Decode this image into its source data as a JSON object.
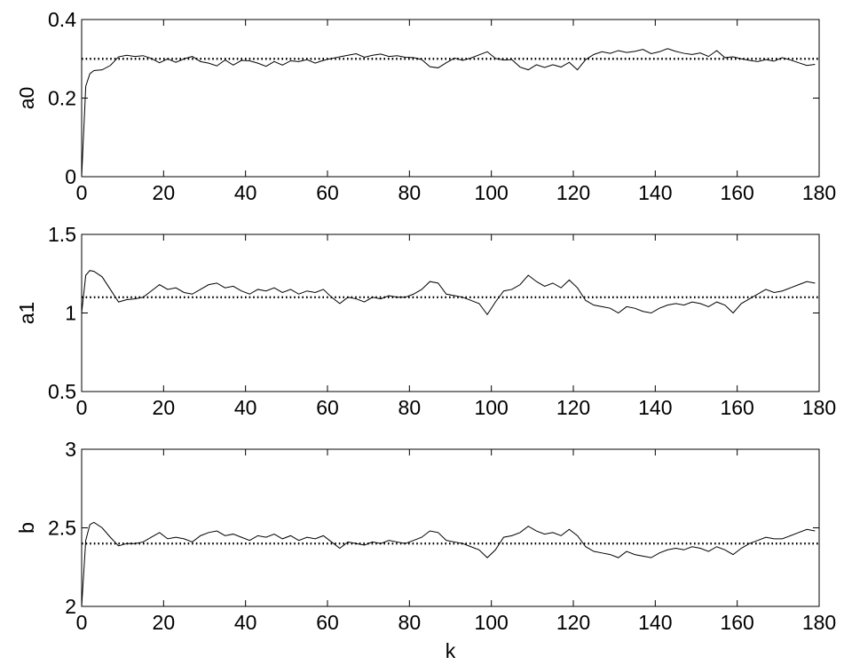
{
  "chart_data": [
    {
      "type": "line",
      "title": "",
      "xlabel": "",
      "ylabel": "a0",
      "xlim": [
        0,
        180
      ],
      "ylim": [
        0,
        0.4
      ],
      "xticks": [
        0,
        20,
        40,
        60,
        80,
        100,
        120,
        140,
        160,
        180
      ],
      "yticks": [
        0,
        0.2,
        0.4
      ],
      "xtick_labels": [
        "0",
        "20",
        "40",
        "60",
        "80",
        "100",
        "120",
        "140",
        "160",
        "180"
      ],
      "ytick_labels": [
        "0",
        "0.2",
        "0.4"
      ],
      "grid": false,
      "series": [
        {
          "style": "solid",
          "x": [
            0,
            1,
            2,
            3,
            5,
            7,
            9,
            11,
            13,
            15,
            17,
            19,
            21,
            23,
            25,
            27,
            29,
            31,
            33,
            35,
            37,
            39,
            41,
            43,
            45,
            47,
            49,
            51,
            53,
            55,
            57,
            59,
            61,
            63,
            65,
            67,
            69,
            71,
            73,
            75,
            77,
            79,
            81,
            83,
            85,
            87,
            89,
            91,
            93,
            95,
            97,
            99,
            101,
            103,
            105,
            107,
            109,
            111,
            113,
            115,
            117,
            119,
            121,
            123,
            125,
            127,
            129,
            131,
            133,
            135,
            137,
            139,
            141,
            143,
            145,
            147,
            149,
            151,
            153,
            155,
            157,
            159,
            161,
            163,
            165,
            167,
            169,
            171,
            173,
            175,
            177,
            179
          ],
          "y": [
            0.0,
            0.23,
            0.262,
            0.27,
            0.272,
            0.283,
            0.305,
            0.309,
            0.306,
            0.308,
            0.301,
            0.29,
            0.3,
            0.291,
            0.3,
            0.306,
            0.293,
            0.289,
            0.282,
            0.297,
            0.284,
            0.296,
            0.295,
            0.289,
            0.281,
            0.293,
            0.284,
            0.295,
            0.293,
            0.298,
            0.289,
            0.296,
            0.301,
            0.305,
            0.309,
            0.313,
            0.304,
            0.309,
            0.312,
            0.306,
            0.308,
            0.304,
            0.303,
            0.298,
            0.28,
            0.277,
            0.29,
            0.302,
            0.296,
            0.302,
            0.31,
            0.318,
            0.301,
            0.297,
            0.298,
            0.279,
            0.272,
            0.285,
            0.278,
            0.285,
            0.279,
            0.291,
            0.272,
            0.298,
            0.311,
            0.318,
            0.314,
            0.321,
            0.316,
            0.319,
            0.324,
            0.313,
            0.318,
            0.326,
            0.319,
            0.314,
            0.311,
            0.315,
            0.306,
            0.321,
            0.303,
            0.305,
            0.3,
            0.296,
            0.293,
            0.298,
            0.294,
            0.303,
            0.297,
            0.29,
            0.283,
            0.286
          ]
        },
        {
          "style": "dotted",
          "x": [
            0,
            180
          ],
          "y": [
            0.3,
            0.3
          ]
        }
      ]
    },
    {
      "type": "line",
      "title": "",
      "xlabel": "",
      "ylabel": "a1",
      "xlim": [
        0,
        180
      ],
      "ylim": [
        0.5,
        1.5
      ],
      "xticks": [
        0,
        20,
        40,
        60,
        80,
        100,
        120,
        140,
        160,
        180
      ],
      "yticks": [
        0.5,
        1,
        1.5
      ],
      "xtick_labels": [
        "0",
        "20",
        "40",
        "60",
        "80",
        "100",
        "120",
        "140",
        "160",
        "180"
      ],
      "ytick_labels": [
        "0.5",
        "1",
        "1.5"
      ],
      "grid": false,
      "series": [
        {
          "style": "solid",
          "x": [
            0,
            1,
            2,
            3,
            5,
            7,
            9,
            11,
            13,
            15,
            17,
            19,
            21,
            23,
            25,
            27,
            29,
            31,
            33,
            35,
            37,
            39,
            41,
            43,
            45,
            47,
            49,
            51,
            53,
            55,
            57,
            59,
            61,
            63,
            65,
            67,
            69,
            71,
            73,
            75,
            77,
            79,
            81,
            83,
            85,
            87,
            89,
            91,
            93,
            95,
            97,
            99,
            101,
            103,
            105,
            107,
            109,
            111,
            113,
            115,
            117,
            119,
            121,
            123,
            125,
            127,
            129,
            131,
            133,
            135,
            137,
            139,
            141,
            143,
            145,
            147,
            149,
            151,
            153,
            155,
            157,
            159,
            161,
            163,
            165,
            167,
            169,
            171,
            173,
            175,
            177,
            179
          ],
          "y": [
            1.0,
            1.24,
            1.27,
            1.265,
            1.23,
            1.15,
            1.07,
            1.085,
            1.09,
            1.1,
            1.14,
            1.18,
            1.15,
            1.16,
            1.13,
            1.12,
            1.15,
            1.18,
            1.19,
            1.16,
            1.17,
            1.14,
            1.12,
            1.15,
            1.14,
            1.16,
            1.13,
            1.15,
            1.12,
            1.14,
            1.13,
            1.15,
            1.1,
            1.06,
            1.1,
            1.09,
            1.07,
            1.1,
            1.09,
            1.11,
            1.1,
            1.1,
            1.12,
            1.15,
            1.2,
            1.19,
            1.12,
            1.11,
            1.1,
            1.08,
            1.06,
            0.99,
            1.07,
            1.14,
            1.15,
            1.18,
            1.24,
            1.2,
            1.17,
            1.19,
            1.16,
            1.21,
            1.16,
            1.08,
            1.05,
            1.04,
            1.03,
            1.0,
            1.04,
            1.03,
            1.01,
            1.0,
            1.03,
            1.05,
            1.06,
            1.05,
            1.07,
            1.06,
            1.04,
            1.07,
            1.05,
            1.0,
            1.06,
            1.09,
            1.12,
            1.15,
            1.13,
            1.14,
            1.16,
            1.18,
            1.2,
            1.19
          ]
        },
        {
          "style": "dotted",
          "x": [
            0,
            180
          ],
          "y": [
            1.1,
            1.1
          ]
        }
      ]
    },
    {
      "type": "line",
      "title": "",
      "xlabel": "k",
      "ylabel": "b",
      "xlim": [
        0,
        180
      ],
      "ylim": [
        2,
        3
      ],
      "xticks": [
        0,
        20,
        40,
        60,
        80,
        100,
        120,
        140,
        160,
        180
      ],
      "yticks": [
        2,
        2.5,
        3
      ],
      "xtick_labels": [
        "0",
        "20",
        "40",
        "60",
        "80",
        "100",
        "120",
        "140",
        "160",
        "180"
      ],
      "ytick_labels": [
        "2",
        "2.5",
        "3"
      ],
      "grid": false,
      "series": [
        {
          "style": "solid",
          "x": [
            0,
            1,
            2,
            3,
            5,
            7,
            9,
            11,
            13,
            15,
            17,
            19,
            21,
            23,
            25,
            27,
            29,
            31,
            33,
            35,
            37,
            39,
            41,
            43,
            45,
            47,
            49,
            51,
            53,
            55,
            57,
            59,
            61,
            63,
            65,
            67,
            69,
            71,
            73,
            75,
            77,
            79,
            81,
            83,
            85,
            87,
            89,
            91,
            93,
            95,
            97,
            99,
            101,
            103,
            105,
            107,
            109,
            111,
            113,
            115,
            117,
            119,
            121,
            123,
            125,
            127,
            129,
            131,
            133,
            135,
            137,
            139,
            141,
            143,
            145,
            147,
            149,
            151,
            153,
            155,
            157,
            159,
            161,
            163,
            165,
            167,
            169,
            171,
            173,
            175,
            177,
            179
          ],
          "y": [
            2.0,
            2.42,
            2.52,
            2.535,
            2.5,
            2.44,
            2.385,
            2.4,
            2.4,
            2.41,
            2.44,
            2.47,
            2.43,
            2.44,
            2.43,
            2.41,
            2.45,
            2.47,
            2.48,
            2.45,
            2.46,
            2.44,
            2.42,
            2.45,
            2.44,
            2.46,
            2.43,
            2.45,
            2.42,
            2.44,
            2.43,
            2.45,
            2.41,
            2.37,
            2.41,
            2.4,
            2.39,
            2.41,
            2.4,
            2.42,
            2.41,
            2.4,
            2.42,
            2.44,
            2.48,
            2.47,
            2.42,
            2.41,
            2.4,
            2.38,
            2.36,
            2.31,
            2.36,
            2.44,
            2.45,
            2.47,
            2.51,
            2.48,
            2.46,
            2.47,
            2.45,
            2.49,
            2.45,
            2.38,
            2.35,
            2.34,
            2.33,
            2.31,
            2.35,
            2.33,
            2.32,
            2.31,
            2.34,
            2.36,
            2.37,
            2.36,
            2.38,
            2.37,
            2.35,
            2.38,
            2.36,
            2.33,
            2.37,
            2.4,
            2.42,
            2.44,
            2.43,
            2.43,
            2.45,
            2.47,
            2.49,
            2.48
          ]
        },
        {
          "style": "dotted",
          "x": [
            0,
            180
          ],
          "y": [
            2.4,
            2.4
          ]
        }
      ]
    }
  ]
}
